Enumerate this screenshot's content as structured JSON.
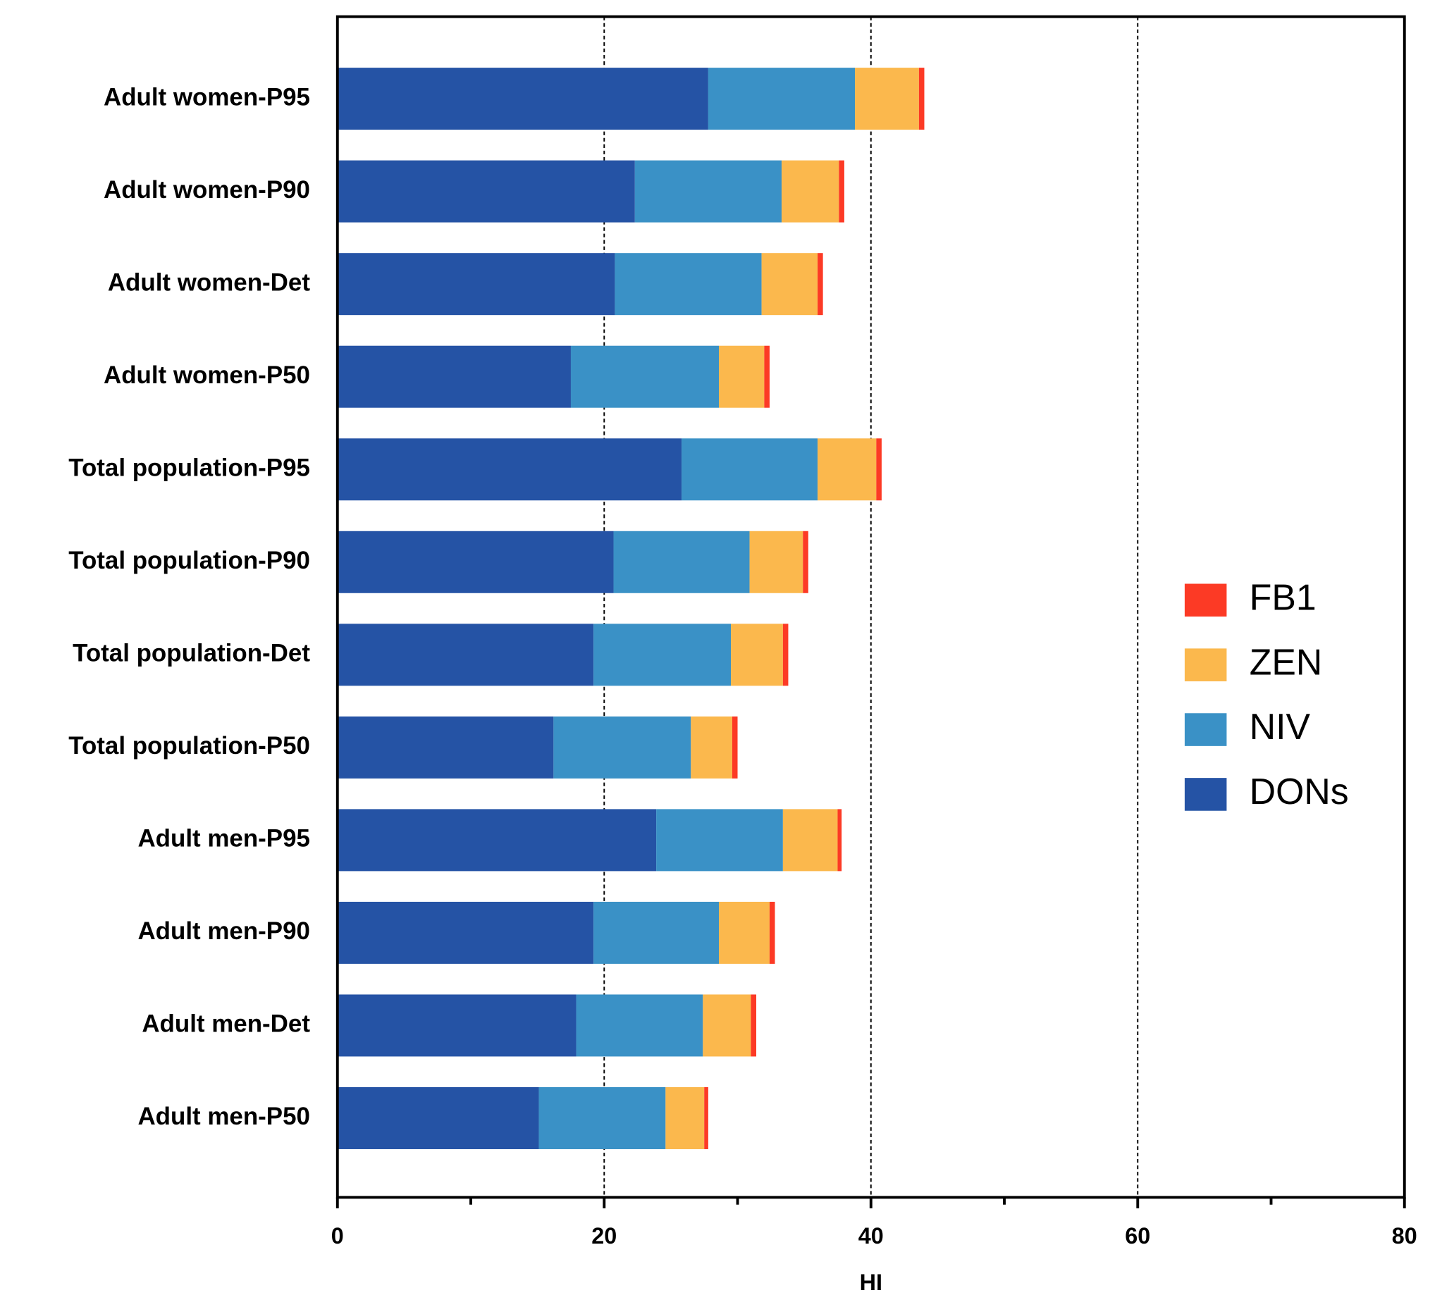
{
  "chart_data": {
    "type": "stacked-bar-horizontal",
    "x_label": "HI",
    "categories": [
      "Adult women-P95",
      "Adult women-P90",
      "Adult women-Det",
      "Adult women-P50",
      "Total population-P95",
      "Total population-P90",
      "Total population-Det",
      "Total population-P50",
      "Adult men-P95",
      "Adult men-P90",
      "Adult men-Det",
      "Adult men-P50"
    ],
    "series": [
      {
        "name": "DONs",
        "color": "#2553a5",
        "values": [
          27.8,
          22.3,
          20.8,
          17.5,
          25.8,
          20.7,
          19.2,
          16.2,
          23.9,
          19.2,
          17.9,
          15.1
        ]
      },
      {
        "name": "NIV",
        "color": "#3a91c6",
        "values": [
          11.0,
          11.0,
          11.0,
          11.1,
          10.2,
          10.2,
          10.3,
          10.3,
          9.5,
          9.4,
          9.5,
          9.5
        ]
      },
      {
        "name": "ZEN",
        "color": "#fbb84d",
        "values": [
          4.8,
          4.3,
          4.2,
          3.4,
          4.4,
          4.0,
          3.9,
          3.1,
          4.1,
          3.8,
          3.6,
          2.9
        ]
      },
      {
        "name": "FB1",
        "color": "#fc3a25",
        "values": [
          0.4,
          0.4,
          0.4,
          0.4,
          0.4,
          0.4,
          0.4,
          0.4,
          0.3,
          0.4,
          0.4,
          0.3
        ]
      }
    ],
    "xlim": [
      0,
      80
    ],
    "xticks": [
      0,
      20,
      40,
      60,
      80
    ],
    "grid": true,
    "legend_position": "right"
  }
}
